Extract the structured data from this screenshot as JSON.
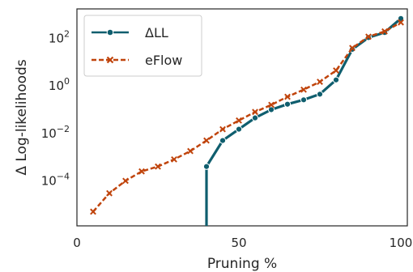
{
  "chart_data": {
    "type": "line",
    "xlabel": "Pruning %",
    "ylabel": "Δ Log-likelihoods",
    "xlim": [
      0,
      102
    ],
    "ylim_log10": [
      -5.9,
      3.25
    ],
    "yscale": "log",
    "grid": false,
    "legend": "top-left",
    "x_ticks": [
      {
        "value": 0,
        "label": "0"
      },
      {
        "value": 50,
        "label": "50"
      },
      {
        "value": 100,
        "label": "100"
      }
    ],
    "y_ticks": [
      {
        "exp": -4,
        "base": "10",
        "sup": "−4"
      },
      {
        "exp": -2,
        "base": "10",
        "sup": "−2"
      },
      {
        "exp": 0,
        "base": "10",
        "sup": "0"
      },
      {
        "exp": 2,
        "base": "10",
        "sup": "2"
      }
    ],
    "series": [
      {
        "name": "ΔLL",
        "color": "#0f5e6e",
        "marker": "circle",
        "dashed": false,
        "drop_from_x": 40,
        "x": [
          40,
          45,
          50,
          55,
          60,
          65,
          70,
          75,
          80,
          85,
          90,
          95,
          100
        ],
        "y": [
          0.0004,
          0.005,
          0.015,
          0.045,
          0.1,
          0.17,
          0.26,
          0.45,
          1.8,
          35,
          110,
          180,
          700
        ]
      },
      {
        "name": "eFlow",
        "color": "#c0440c",
        "marker": "x",
        "dashed": true,
        "x": [
          5,
          10,
          15,
          20,
          25,
          30,
          35,
          40,
          45,
          50,
          55,
          60,
          65,
          70,
          75,
          80,
          85,
          90,
          95,
          100
        ],
        "y": [
          5e-06,
          3e-05,
          0.0001,
          0.00025,
          0.0004,
          0.0008,
          0.0018,
          0.005,
          0.015,
          0.035,
          0.08,
          0.16,
          0.35,
          0.7,
          1.5,
          4.5,
          40,
          120,
          200,
          480
        ]
      }
    ]
  }
}
